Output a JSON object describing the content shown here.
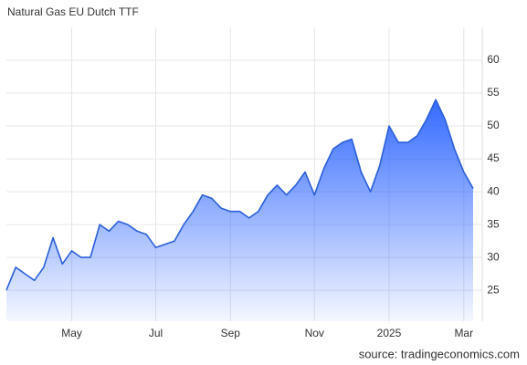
{
  "chart_data": {
    "type": "area",
    "title": "Natural Gas EU Dutch TTF",
    "source": "source: tradingeconomics.com",
    "categories": [
      null,
      null,
      null,
      null,
      null,
      null,
      null,
      "May",
      null,
      null,
      null,
      null,
      null,
      null,
      null,
      null,
      "Jul",
      null,
      null,
      null,
      null,
      null,
      null,
      null,
      "Sep",
      null,
      null,
      null,
      null,
      null,
      null,
      null,
      null,
      "Nov",
      null,
      null,
      null,
      null,
      null,
      null,
      null,
      "2025",
      null,
      null,
      null,
      null,
      null,
      null,
      null,
      "Mar",
      null
    ],
    "values": [
      25,
      28.5,
      27.5,
      26.5,
      28.5,
      33,
      29,
      31,
      30,
      30,
      35,
      34,
      35.5,
      35,
      34,
      33.5,
      31.5,
      32,
      32.5,
      35,
      37,
      39.5,
      39,
      37.5,
      37,
      37,
      36,
      37,
      39.5,
      41,
      39.5,
      41,
      43,
      39.5,
      43.5,
      46.5,
      47.5,
      48,
      43,
      40,
      44,
      50,
      47.5,
      47.5,
      48.5,
      51,
      54,
      51,
      46.5,
      43,
      40.5
    ],
    "color": "#2b5fd9",
    "ylim": [
      20.3,
      65
    ],
    "yticks": [
      25,
      30,
      35,
      40,
      45,
      50,
      55,
      60
    ],
    "grid": true
  }
}
